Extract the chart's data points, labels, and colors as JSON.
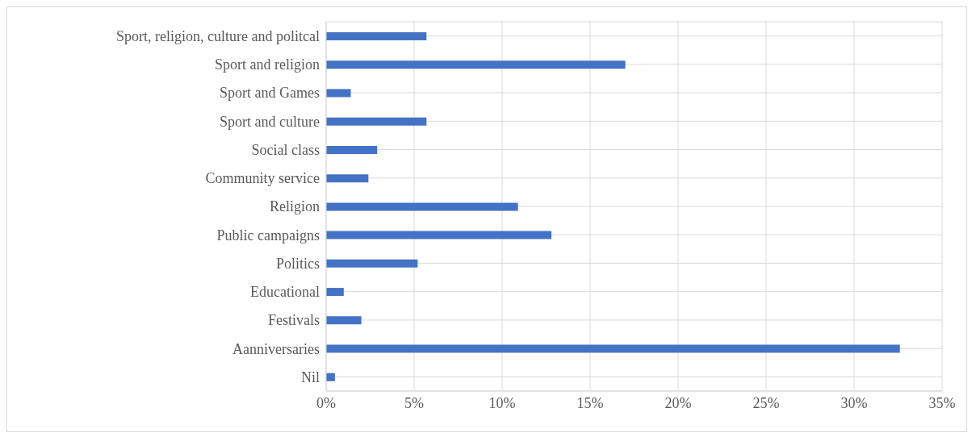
{
  "chart_data": {
    "type": "bar",
    "orientation": "horizontal",
    "categories": [
      "Sport, religion, culture and politcal",
      "Sport and religion",
      "Sport and Games",
      "Sport and culture",
      "Social class ",
      "Community service",
      "Religion",
      "Public campaigns",
      "Politics",
      "Educational",
      "Festivals",
      "Aanniversaries",
      "Nil"
    ],
    "values": [
      5.7,
      17.0,
      1.4,
      5.7,
      2.9,
      2.4,
      10.9,
      12.8,
      5.2,
      1.0,
      2.0,
      32.6,
      0.5
    ],
    "color": "#4472c4",
    "xlim": [
      0,
      35
    ],
    "xticks": [
      {
        "value": 0,
        "label": "0%"
      },
      {
        "value": 5,
        "label": "5%"
      },
      {
        "value": 10,
        "label": "10%"
      },
      {
        "value": 15,
        "label": "15%"
      },
      {
        "value": 20,
        "label": "20%"
      },
      {
        "value": 25,
        "label": "25%"
      },
      {
        "value": 30,
        "label": "30%"
      },
      {
        "value": 35,
        "label": "35%"
      }
    ],
    "grid": true
  }
}
